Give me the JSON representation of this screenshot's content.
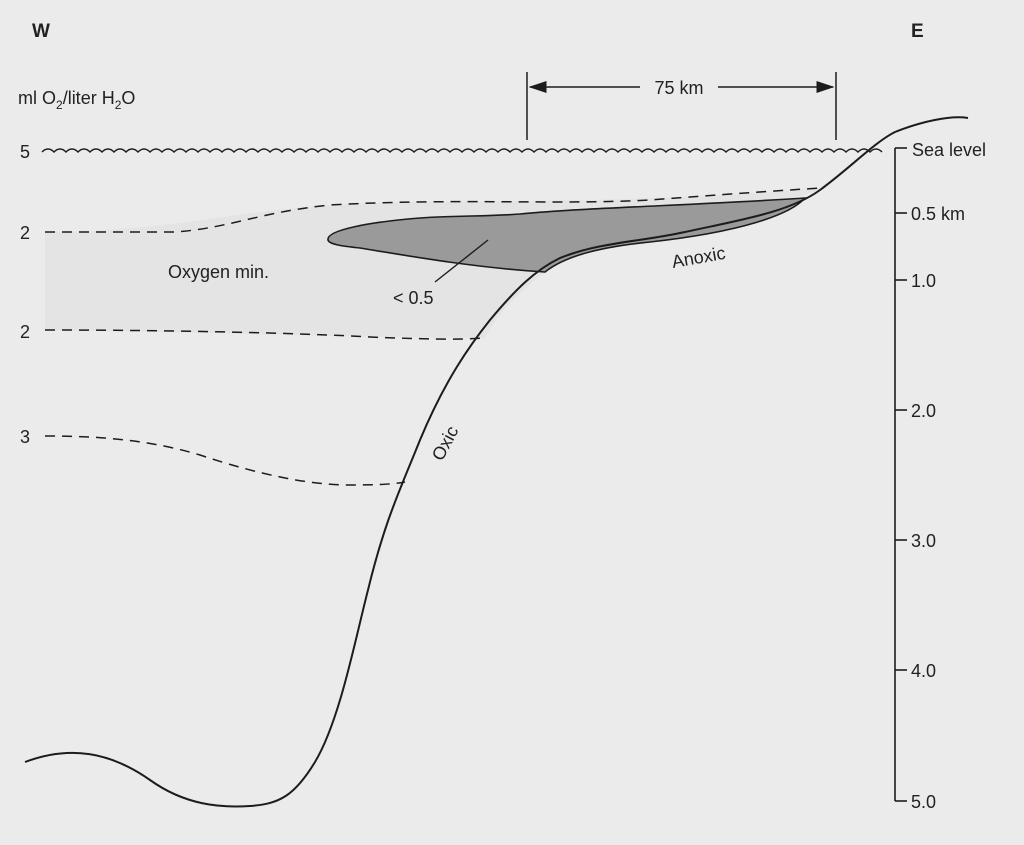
{
  "directions": {
    "west": "W",
    "east": "E"
  },
  "units": {
    "prefix": "ml O",
    "o2_sub": "2",
    "mid": "/liter H",
    "h2o_sub": "2",
    "suffix": "O"
  },
  "oxygen_scale": {
    "sea_level": "5",
    "upper_oxygen_min": "2",
    "lower_oxygen_min": "2",
    "deep_contour": "3"
  },
  "distance_scale": {
    "label": "75 km"
  },
  "depth_axis": {
    "sea_level": "Sea level",
    "ticks": [
      "0.5 km",
      "1.0",
      "2.0",
      "3.0",
      "4.0",
      "5.0"
    ]
  },
  "zones": {
    "oxygen_min": "Oxygen min.",
    "core_value": "< 0.5",
    "anoxic": "Anoxic",
    "oxic": "Oxic"
  },
  "colors": {
    "background": "#ebebeb",
    "ink": "#1c1c1c",
    "anoxic_fill": "#9a9a9a",
    "oxygen_min_shade": "#e2e2e2"
  }
}
